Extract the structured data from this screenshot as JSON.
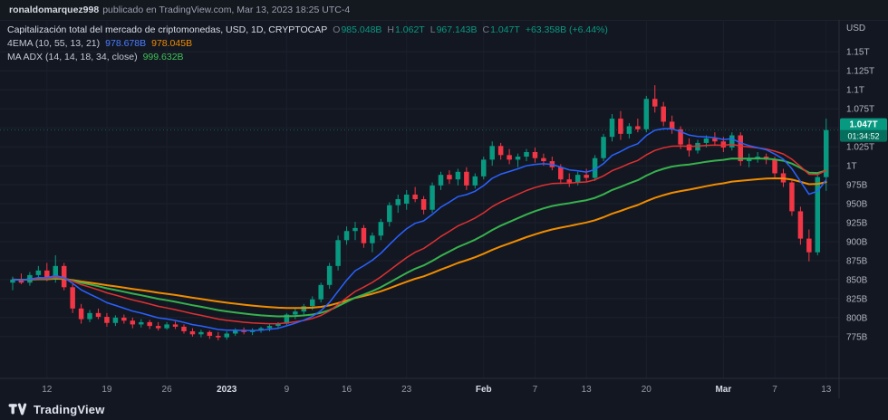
{
  "topbar": {
    "username": "ronaldomarquez998",
    "published": "publicado en TradingView.com, Mar 13, 2023 18:25 UTC-4"
  },
  "legend": {
    "title": "Capitalización total del mercado de criptomonedas, USD, 1D, CRYPTOCAP",
    "o_key": "O",
    "o_val": "985.048B",
    "h_key": "H",
    "h_val": "1.062T",
    "l_key": "L",
    "l_val": "967.143B",
    "c_key": "C",
    "c_val": "1.047T",
    "change": "+63.358B (+6.44%)",
    "ema_label": "4EMA (10, 55, 13, 21)",
    "ema_val1": "978.678B",
    "ema_val2": "978.045B",
    "maadx_label": "MA ADX (14, 14, 18, 34, close)",
    "maadx_val": "999.632B"
  },
  "price_badge": {
    "price": "1.047T",
    "countdown": "01:34:52"
  },
  "footer": {
    "brand": "TradingView"
  },
  "colors": {
    "background": "#131722",
    "grid": "#1e222d",
    "axis_text": "#b2b5be",
    "up": "#089981",
    "down": "#f23645",
    "badge": "#089981",
    "ema10": "#2962ff",
    "ema21": "#e03131",
    "maadx": "#37b24d",
    "ema55": "#f08c00"
  },
  "chart_data": {
    "type": "candlestick",
    "title": "Capitalización total del mercado de criptomonedas",
    "currency": "USD",
    "interval": "1D",
    "exchange": "CRYPTOCAP",
    "unit": "billions USD",
    "last_price": 1047,
    "value_range": [
      720,
      1192
    ],
    "visible_axis_range": [
      775,
      1150
    ],
    "y_axis_top_label": "USD",
    "y_ticks": [
      {
        "v": 1150,
        "label": "1.15T"
      },
      {
        "v": 1125,
        "label": "1.125T"
      },
      {
        "v": 1100,
        "label": "1.1T"
      },
      {
        "v": 1075,
        "label": "1.075T"
      },
      {
        "v": 1050,
        "label": "1.05T"
      },
      {
        "v": 1025,
        "label": "1.025T"
      },
      {
        "v": 1000,
        "label": "1T"
      },
      {
        "v": 975,
        "label": "975B"
      },
      {
        "v": 950,
        "label": "950B"
      },
      {
        "v": 925,
        "label": "925B"
      },
      {
        "v": 900,
        "label": "900B"
      },
      {
        "v": 875,
        "label": "875B"
      },
      {
        "v": 850,
        "label": "850B"
      },
      {
        "v": 825,
        "label": "825B"
      },
      {
        "v": 800,
        "label": "800B"
      },
      {
        "v": 775,
        "label": "775B"
      }
    ],
    "x_labels": [
      {
        "i": 4,
        "t": "12"
      },
      {
        "i": 11,
        "t": "19"
      },
      {
        "i": 18,
        "t": "26"
      },
      {
        "i": 25,
        "t": "2023",
        "b": true
      },
      {
        "i": 32,
        "t": "9"
      },
      {
        "i": 39,
        "t": "16"
      },
      {
        "i": 46,
        "t": "23"
      },
      {
        "i": 55,
        "t": "Feb",
        "b": true
      },
      {
        "i": 61,
        "t": "7"
      },
      {
        "i": 67,
        "t": "13"
      },
      {
        "i": 74,
        "t": "20"
      },
      {
        "i": 83,
        "t": "Mar",
        "b": true
      },
      {
        "i": 89,
        "t": "7"
      },
      {
        "i": 95,
        "t": "13"
      }
    ],
    "overlays": [
      {
        "name": "EMA55",
        "period": 55,
        "color": "#f08c00",
        "width": 2
      },
      {
        "name": "MA-ADX-34",
        "period": 34,
        "color": "#37b24d",
        "width": 2
      },
      {
        "name": "EMA21",
        "period": 21,
        "color": "#e03131",
        "width": 1.5
      },
      {
        "name": "EMA10",
        "period": 10,
        "color": "#2962ff",
        "width": 1.5
      }
    ],
    "ohlc": [
      [
        846,
        854,
        836,
        850
      ],
      [
        850,
        858,
        844,
        846
      ],
      [
        846,
        860,
        842,
        856
      ],
      [
        856,
        868,
        850,
        862
      ],
      [
        862,
        872,
        848,
        852
      ],
      [
        852,
        882,
        846,
        868
      ],
      [
        868,
        872,
        836,
        840
      ],
      [
        840,
        844,
        806,
        812
      ],
      [
        812,
        818,
        792,
        798
      ],
      [
        798,
        810,
        794,
        806
      ],
      [
        806,
        812,
        798,
        801
      ],
      [
        801,
        806,
        788,
        793
      ],
      [
        793,
        803,
        789,
        800
      ],
      [
        800,
        804,
        792,
        796
      ],
      [
        796,
        800,
        786,
        791
      ],
      [
        791,
        798,
        787,
        794
      ],
      [
        794,
        797,
        785,
        789
      ],
      [
        789,
        794,
        783,
        786
      ],
      [
        786,
        794,
        784,
        791
      ],
      [
        791,
        795,
        785,
        788
      ],
      [
        788,
        791,
        779,
        782
      ],
      [
        782,
        786,
        775,
        778
      ],
      [
        778,
        784,
        774,
        781
      ],
      [
        781,
        783,
        772,
        776
      ],
      [
        776,
        781,
        770,
        774
      ],
      [
        774,
        782,
        771,
        779
      ],
      [
        779,
        786,
        776,
        784
      ],
      [
        784,
        787,
        778,
        781
      ],
      [
        781,
        786,
        777,
        783
      ],
      [
        783,
        788,
        780,
        786
      ],
      [
        786,
        791,
        782,
        789
      ],
      [
        789,
        794,
        785,
        792
      ],
      [
        792,
        806,
        790,
        804
      ],
      [
        804,
        812,
        798,
        808
      ],
      [
        808,
        818,
        802,
        815
      ],
      [
        815,
        828,
        810,
        824
      ],
      [
        824,
        846,
        820,
        843
      ],
      [
        843,
        872,
        838,
        868
      ],
      [
        868,
        908,
        862,
        902
      ],
      [
        902,
        920,
        896,
        914
      ],
      [
        914,
        926,
        902,
        918
      ],
      [
        918,
        922,
        892,
        898
      ],
      [
        898,
        912,
        886,
        908
      ],
      [
        908,
        930,
        902,
        926
      ],
      [
        926,
        952,
        920,
        948
      ],
      [
        948,
        962,
        938,
        956
      ],
      [
        950,
        968,
        942,
        962
      ],
      [
        962,
        972,
        952,
        956
      ],
      [
        956,
        960,
        936,
        942
      ],
      [
        942,
        978,
        938,
        974
      ],
      [
        974,
        992,
        968,
        988
      ],
      [
        988,
        994,
        976,
        982
      ],
      [
        982,
        996,
        974,
        992
      ],
      [
        992,
        998,
        968,
        974
      ],
      [
        974,
        990,
        970,
        986
      ],
      [
        986,
        1012,
        982,
        1008
      ],
      [
        1008,
        1032,
        1000,
        1026
      ],
      [
        1026,
        1030,
        1008,
        1014
      ],
      [
        1014,
        1022,
        1002,
        1008
      ],
      [
        1008,
        1016,
        998,
        1012
      ],
      [
        1012,
        1022,
        1006,
        1018
      ],
      [
        1018,
        1024,
        1004,
        1010
      ],
      [
        1010,
        1016,
        1000,
        1006
      ],
      [
        1006,
        1012,
        994,
        998
      ],
      [
        998,
        1002,
        976,
        982
      ],
      [
        982,
        990,
        972,
        978
      ],
      [
        978,
        992,
        974,
        988
      ],
      [
        988,
        996,
        978,
        984
      ],
      [
        984,
        1014,
        980,
        1010
      ],
      [
        1010,
        1042,
        1006,
        1038
      ],
      [
        1038,
        1068,
        1032,
        1062
      ],
      [
        1062,
        1072,
        1034,
        1042
      ],
      [
        1042,
        1056,
        1036,
        1052
      ],
      [
        1052,
        1062,
        1044,
        1048
      ],
      [
        1048,
        1092,
        1044,
        1088
      ],
      [
        1088,
        1106,
        1070,
        1078
      ],
      [
        1078,
        1084,
        1052,
        1058
      ],
      [
        1058,
        1066,
        1042,
        1048
      ],
      [
        1048,
        1052,
        1022,
        1028
      ],
      [
        1028,
        1036,
        1012,
        1020
      ],
      [
        1020,
        1034,
        1016,
        1030
      ],
      [
        1030,
        1040,
        1024,
        1036
      ],
      [
        1036,
        1044,
        1028,
        1032
      ],
      [
        1032,
        1038,
        1018,
        1024
      ],
      [
        1024,
        1044,
        1020,
        1040
      ],
      [
        1040,
        1044,
        1000,
        1006
      ],
      [
        1006,
        1016,
        998,
        1010
      ],
      [
        1010,
        1018,
        1004,
        1012
      ],
      [
        1012,
        1016,
        1002,
        1008
      ],
      [
        1008,
        1012,
        984,
        990
      ],
      [
        990,
        996,
        972,
        978
      ],
      [
        978,
        982,
        934,
        940
      ],
      [
        940,
        946,
        896,
        904
      ],
      [
        904,
        916,
        874,
        886
      ],
      [
        886,
        990,
        882,
        985
      ],
      [
        985,
        1062,
        967,
        1047
      ]
    ]
  }
}
